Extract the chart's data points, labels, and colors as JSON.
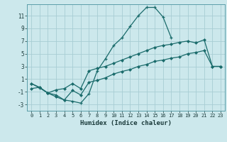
{
  "title": "",
  "xlabel": "Humidex (Indice chaleur)",
  "bg_color": "#cce8ec",
  "grid_color": "#a8cdd4",
  "line_color": "#1a6b6b",
  "xlim": [
    -0.5,
    23.5
  ],
  "ylim": [
    -4.0,
    12.8
  ],
  "yticks": [
    -3,
    -1,
    1,
    3,
    5,
    7,
    9,
    11
  ],
  "xticks": [
    0,
    1,
    2,
    3,
    4,
    5,
    6,
    7,
    8,
    9,
    10,
    11,
    12,
    13,
    14,
    15,
    16,
    17,
    18,
    19,
    20,
    21,
    22,
    23
  ],
  "line1_x": [
    0,
    1,
    2,
    3,
    4,
    5,
    6,
    7,
    8,
    9,
    10,
    11,
    12,
    13,
    14,
    15,
    16,
    17,
    18,
    19,
    20,
    21,
    22,
    23
  ],
  "line1_y": [
    0.3,
    -0.4,
    -1.2,
    -1.5,
    -2.3,
    -2.5,
    -2.8,
    -1.3,
    2.3,
    4.2,
    6.3,
    7.5,
    9.3,
    11.0,
    12.3,
    12.3,
    10.8,
    7.5,
    null,
    null,
    null,
    null,
    null,
    null
  ],
  "line2_x": [
    0,
    1,
    2,
    3,
    4,
    5,
    6,
    7,
    8,
    9,
    10,
    11,
    12,
    13,
    14,
    15,
    16,
    17,
    18,
    19,
    20,
    21,
    22,
    23
  ],
  "line2_y": [
    0.3,
    -0.3,
    null,
    -0.7,
    null,
    null,
    null,
    2.3,
    null,
    null,
    null,
    null,
    null,
    null,
    null,
    null,
    null,
    null,
    null,
    null,
    6.7,
    null,
    3.0,
    3.0
  ],
  "line3_x": [
    0,
    1,
    2,
    3,
    4,
    5,
    6,
    7,
    8,
    9,
    10,
    11,
    12,
    13,
    14,
    15,
    16,
    17,
    18,
    19,
    20,
    21,
    22,
    23
  ],
  "line3_y": [
    0.3,
    -0.3,
    -1.2,
    -0.7,
    -0.5,
    0.3,
    -0.5,
    2.3,
    2.7,
    3.0,
    3.5,
    4.0,
    4.5,
    5.0,
    5.5,
    6.0,
    6.3,
    6.5,
    6.8,
    7.0,
    6.7,
    7.2,
    3.0,
    3.0
  ],
  "line4_x": [
    0,
    1,
    2,
    3,
    4,
    5,
    6,
    7,
    8,
    9,
    10,
    11,
    12,
    13,
    14,
    15,
    16,
    17,
    18,
    19,
    20,
    21,
    22,
    23
  ],
  "line4_y": [
    -0.5,
    -0.3,
    -1.2,
    -1.8,
    -2.3,
    -0.8,
    -1.5,
    0.5,
    0.8,
    1.2,
    1.8,
    2.2,
    2.5,
    3.0,
    3.3,
    3.8,
    4.0,
    4.3,
    4.5,
    5.0,
    5.2,
    5.5,
    3.0,
    3.0
  ]
}
